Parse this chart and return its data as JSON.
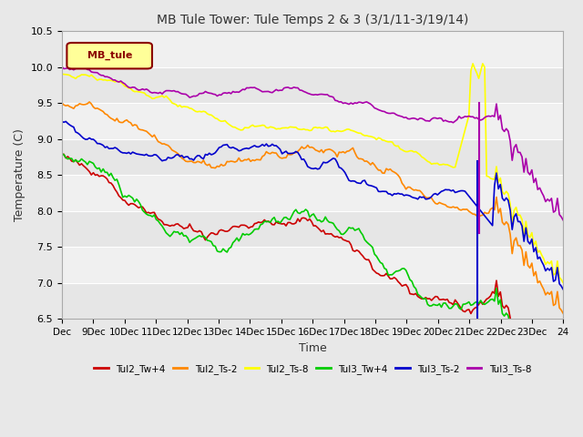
{
  "title": "MB Tule Tower: Tule Temps 2 & 3 (3/1/11-3/19/14)",
  "xlabel": "Time",
  "ylabel": "Temperature (C)",
  "ylim": [
    6.5,
    10.5
  ],
  "background_color": "#e8e8e8",
  "plot_bg_color": "#f0f0f0",
  "legend_label": "MB_tule",
  "legend_label_color": "#8b0000",
  "legend_label_bg": "#ffff99",
  "x_tick_labels": [
    "Dec",
    "9Dec",
    "10Dec",
    "11Dec",
    "12Dec",
    "13Dec",
    "14Dec",
    "15Dec",
    "16Dec",
    "17Dec",
    "18Dec",
    "19Dec",
    "20Dec",
    "21Dec",
    "22Dec",
    "23Dec",
    "24"
  ],
  "series_colors": [
    "#cc0000",
    "#ff8800",
    "#ffff00",
    "#00cc00",
    "#0000cc",
    "#aa00aa"
  ],
  "series_labels": [
    "Tul2_Tw+4",
    "Tul2_Ts-2",
    "Tul2_Ts-8",
    "Tul3_Tw+4",
    "Tul3_Ts-2",
    "Tul3_Ts-8"
  ],
  "grid_color": "#ffffff",
  "n_points": 256
}
